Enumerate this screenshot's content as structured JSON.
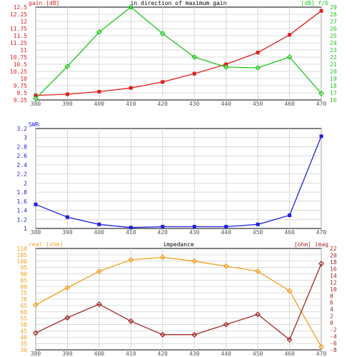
{
  "chart_data": [
    {
      "type": "line",
      "title": "in direction of maximum gain",
      "x": [
        380,
        390,
        400,
        410,
        420,
        430,
        440,
        450,
        460,
        470
      ],
      "x_ticks": [
        "380",
        "390",
        "400",
        "410",
        "420",
        "430",
        "440",
        "450",
        "460",
        "470"
      ],
      "xlim": [
        380,
        470
      ],
      "grid": true,
      "left_axis": {
        "label": "gain [dB]",
        "color": "#e02020",
        "ylim": [
          9.25,
          12.5
        ],
        "ticks": [
          "9.25",
          "9.5",
          "9.75",
          "10",
          "10.25",
          "10.5",
          "10.75",
          "11",
          "11.25",
          "11.5",
          "11.75",
          "12",
          "12.25",
          "12.5"
        ]
      },
      "right_axis": {
        "label": "[dB] f/b",
        "color": "#22c522",
        "ylim": [
          16,
          29
        ],
        "ticks": [
          "16",
          "17",
          "18",
          "19",
          "20",
          "21",
          "22",
          "23",
          "24",
          "25",
          "26",
          "27",
          "28",
          "29"
        ]
      },
      "series": [
        {
          "axis": "left",
          "color": "#e02020",
          "marker": "square",
          "values": [
            9.41,
            9.45,
            9.54,
            9.67,
            9.88,
            10.17,
            10.5,
            10.91,
            11.53,
            12.37
          ]
        },
        {
          "axis": "right",
          "color": "#22c522",
          "marker": "diamond",
          "values": [
            16.2,
            20.7,
            25.5,
            29.0,
            25.3,
            22.0,
            20.6,
            20.5,
            22.0,
            16.9
          ]
        }
      ]
    },
    {
      "type": "line",
      "title": "",
      "x": [
        380,
        390,
        400,
        410,
        420,
        430,
        440,
        450,
        460,
        470
      ],
      "x_ticks": [
        "380",
        "390",
        "400",
        "410",
        "420",
        "430",
        "440",
        "450",
        "460",
        "470"
      ],
      "xlim": [
        380,
        470
      ],
      "grid": true,
      "left_axis": {
        "label": "SWR",
        "color": "#2020e0",
        "ylim": [
          1,
          3.2
        ],
        "ticks": [
          "1",
          "1.2",
          "1.4",
          "1.6",
          "1.8",
          "2",
          "2.2",
          "2.4",
          "2.6",
          "2.8",
          "3",
          "3.2"
        ]
      },
      "series": [
        {
          "axis": "left",
          "color": "#2020e0",
          "marker": "square",
          "values": [
            1.53,
            1.25,
            1.09,
            1.02,
            1.04,
            1.04,
            1.04,
            1.09,
            1.29,
            3.03
          ]
        }
      ]
    },
    {
      "type": "line",
      "title": "impedance",
      "x": [
        380,
        390,
        400,
        410,
        420,
        430,
        440,
        450,
        460,
        470
      ],
      "x_ticks": [
        "380",
        "390",
        "400",
        "410",
        "420",
        "430",
        "440",
        "450",
        "460",
        "470"
      ],
      "xlim": [
        380,
        470
      ],
      "grid": true,
      "left_axis": {
        "label": "real [ohm]",
        "color": "#f0a020",
        "ylim": [
          30,
          110
        ],
        "ticks": [
          "30",
          "35",
          "40",
          "45",
          "50",
          "55",
          "60",
          "65",
          "70",
          "75",
          "80",
          "85",
          "90",
          "95",
          "100",
          "105",
          "110"
        ]
      },
      "right_axis": {
        "label": "[ohm] imag",
        "color": "#a02828",
        "ylim": [
          -8,
          22
        ],
        "ticks": [
          "-8",
          "-6",
          "-4",
          "-2",
          "0",
          "2",
          "4",
          "6",
          "8",
          "10",
          "12",
          "14",
          "16",
          "18",
          "20",
          "22"
        ]
      },
      "series": [
        {
          "axis": "left",
          "color": "#f0a020",
          "marker": "diamond",
          "values": [
            65.5,
            79.0,
            92.0,
            101.0,
            103.0,
            100.0,
            96.0,
            92.0,
            76.5,
            32.5
          ]
        },
        {
          "axis": "right",
          "color": "#a02828",
          "marker": "diamond",
          "values": [
            -3.0,
            1.5,
            5.5,
            0.5,
            -3.5,
            -3.5,
            -0.5,
            2.5,
            -5.0,
            17.5
          ]
        }
      ]
    }
  ]
}
